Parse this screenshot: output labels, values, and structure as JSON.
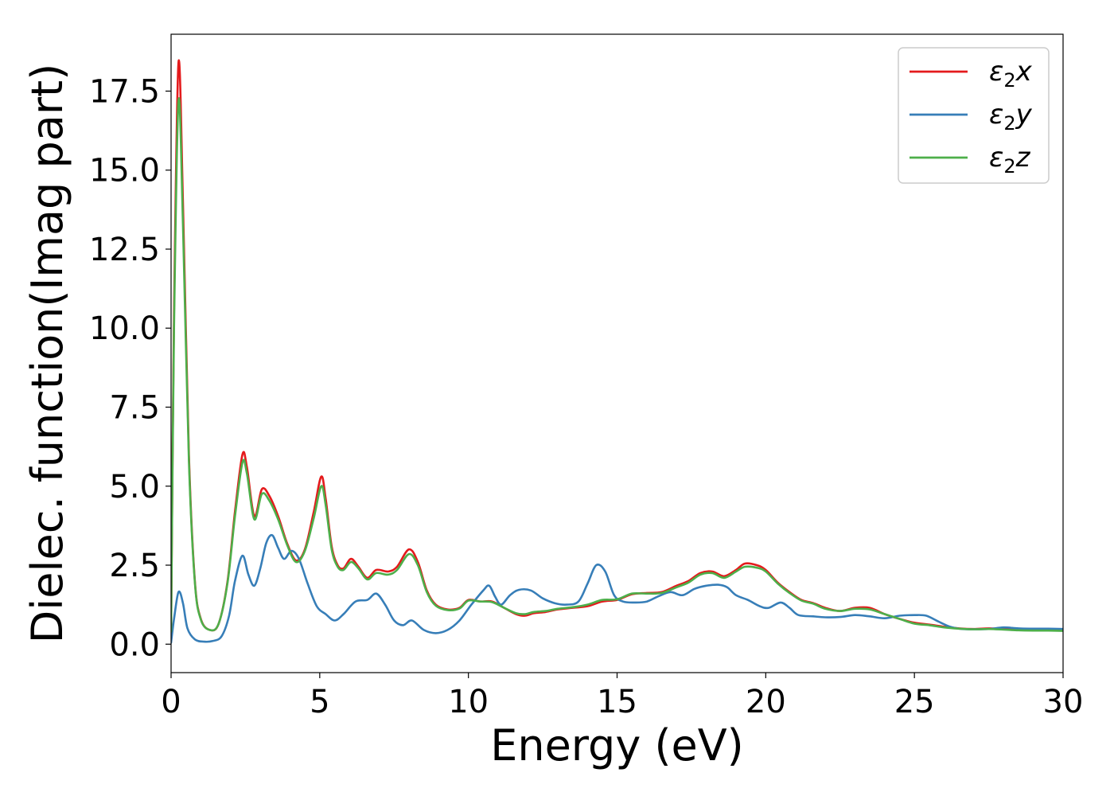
{
  "chart_data": {
    "type": "line",
    "xlabel": "Energy (eV)",
    "ylabel": "Dielec. function(Imag part)",
    "xlim": [
      0,
      30
    ],
    "ylim": [
      -0.9,
      19.3
    ],
    "xticks": [
      0,
      5,
      10,
      15,
      20,
      25,
      30
    ],
    "xtick_labels": [
      "0",
      "5",
      "10",
      "15",
      "20",
      "25",
      "30"
    ],
    "yticks": [
      0.0,
      2.5,
      5.0,
      7.5,
      10.0,
      12.5,
      15.0,
      17.5
    ],
    "ytick_labels": [
      "0.0",
      "2.5",
      "5.0",
      "7.5",
      "10.0",
      "12.5",
      "15.0",
      "17.5"
    ],
    "grid": false,
    "legend_position": "top-right",
    "series": [
      {
        "name": "ε₂x",
        "legend_base": "ε",
        "legend_sub": "2",
        "legend_suffix": "x",
        "color": "#e41a1c",
        "points": [
          [
            0,
            0.4
          ],
          [
            0.1,
            10.5
          ],
          [
            0.25,
            18.4
          ],
          [
            0.4,
            14.0
          ],
          [
            0.6,
            6.0
          ],
          [
            0.8,
            2.0
          ],
          [
            1.0,
            0.8
          ],
          [
            1.3,
            0.45
          ],
          [
            1.6,
            0.65
          ],
          [
            1.9,
            2.0
          ],
          [
            2.15,
            4.2
          ],
          [
            2.4,
            6.0
          ],
          [
            2.55,
            5.6
          ],
          [
            2.8,
            4.05
          ],
          [
            3.05,
            4.9
          ],
          [
            3.3,
            4.7
          ],
          [
            3.6,
            4.05
          ],
          [
            3.9,
            3.2
          ],
          [
            4.2,
            2.65
          ],
          [
            4.5,
            3.0
          ],
          [
            4.8,
            4.2
          ],
          [
            5.05,
            5.3
          ],
          [
            5.2,
            4.6
          ],
          [
            5.4,
            3.1
          ],
          [
            5.6,
            2.5
          ],
          [
            5.8,
            2.4
          ],
          [
            6.05,
            2.7
          ],
          [
            6.3,
            2.45
          ],
          [
            6.6,
            2.1
          ],
          [
            6.9,
            2.35
          ],
          [
            7.3,
            2.3
          ],
          [
            7.6,
            2.45
          ],
          [
            8.0,
            3.0
          ],
          [
            8.3,
            2.6
          ],
          [
            8.6,
            1.7
          ],
          [
            8.9,
            1.25
          ],
          [
            9.3,
            1.1
          ],
          [
            9.7,
            1.15
          ],
          [
            10.0,
            1.4
          ],
          [
            10.4,
            1.35
          ],
          [
            10.8,
            1.35
          ],
          [
            11.2,
            1.15
          ],
          [
            11.6,
            0.95
          ],
          [
            11.9,
            0.9
          ],
          [
            12.2,
            0.98
          ],
          [
            12.6,
            1.02
          ],
          [
            13.0,
            1.1
          ],
          [
            13.5,
            1.15
          ],
          [
            14.0,
            1.2
          ],
          [
            14.5,
            1.35
          ],
          [
            15.0,
            1.4
          ],
          [
            15.5,
            1.58
          ],
          [
            16.0,
            1.62
          ],
          [
            16.5,
            1.65
          ],
          [
            17.0,
            1.85
          ],
          [
            17.4,
            2.0
          ],
          [
            17.8,
            2.25
          ],
          [
            18.2,
            2.3
          ],
          [
            18.6,
            2.15
          ],
          [
            19.0,
            2.35
          ],
          [
            19.3,
            2.55
          ],
          [
            19.7,
            2.5
          ],
          [
            20.0,
            2.35
          ],
          [
            20.4,
            1.95
          ],
          [
            20.8,
            1.65
          ],
          [
            21.2,
            1.4
          ],
          [
            21.6,
            1.3
          ],
          [
            22.0,
            1.15
          ],
          [
            22.5,
            1.05
          ],
          [
            23.0,
            1.15
          ],
          [
            23.5,
            1.15
          ],
          [
            24.0,
            0.95
          ],
          [
            24.5,
            0.8
          ],
          [
            25.0,
            0.68
          ],
          [
            25.5,
            0.62
          ],
          [
            26.0,
            0.55
          ],
          [
            26.5,
            0.5
          ],
          [
            27.0,
            0.48
          ],
          [
            27.5,
            0.5
          ],
          [
            28.0,
            0.48
          ],
          [
            28.5,
            0.45
          ],
          [
            29.0,
            0.45
          ],
          [
            29.5,
            0.45
          ],
          [
            30.0,
            0.44
          ]
        ]
      },
      {
        "name": "ε₂y",
        "legend_base": "ε",
        "legend_sub": "2",
        "legend_suffix": "y",
        "color": "#377eb8",
        "points": [
          [
            0,
            0.05
          ],
          [
            0.1,
            0.8
          ],
          [
            0.25,
            1.65
          ],
          [
            0.4,
            1.3
          ],
          [
            0.55,
            0.5
          ],
          [
            0.8,
            0.15
          ],
          [
            1.1,
            0.08
          ],
          [
            1.4,
            0.1
          ],
          [
            1.7,
            0.25
          ],
          [
            1.95,
            0.9
          ],
          [
            2.15,
            2.0
          ],
          [
            2.4,
            2.8
          ],
          [
            2.6,
            2.2
          ],
          [
            2.8,
            1.85
          ],
          [
            3.0,
            2.4
          ],
          [
            3.2,
            3.2
          ],
          [
            3.4,
            3.45
          ],
          [
            3.6,
            3.05
          ],
          [
            3.8,
            2.7
          ],
          [
            4.05,
            2.95
          ],
          [
            4.3,
            2.7
          ],
          [
            4.6,
            1.9
          ],
          [
            4.9,
            1.2
          ],
          [
            5.2,
            0.95
          ],
          [
            5.5,
            0.75
          ],
          [
            5.8,
            0.95
          ],
          [
            6.2,
            1.35
          ],
          [
            6.6,
            1.4
          ],
          [
            6.9,
            1.6
          ],
          [
            7.2,
            1.25
          ],
          [
            7.5,
            0.75
          ],
          [
            7.8,
            0.6
          ],
          [
            8.1,
            0.75
          ],
          [
            8.5,
            0.45
          ],
          [
            8.9,
            0.35
          ],
          [
            9.3,
            0.45
          ],
          [
            9.7,
            0.75
          ],
          [
            10.1,
            1.25
          ],
          [
            10.5,
            1.7
          ],
          [
            10.7,
            1.85
          ],
          [
            10.9,
            1.5
          ],
          [
            11.1,
            1.25
          ],
          [
            11.4,
            1.55
          ],
          [
            11.7,
            1.72
          ],
          [
            12.1,
            1.7
          ],
          [
            12.5,
            1.45
          ],
          [
            12.9,
            1.3
          ],
          [
            13.3,
            1.25
          ],
          [
            13.7,
            1.35
          ],
          [
            14.0,
            1.9
          ],
          [
            14.3,
            2.5
          ],
          [
            14.6,
            2.3
          ],
          [
            14.9,
            1.55
          ],
          [
            15.2,
            1.35
          ],
          [
            15.6,
            1.32
          ],
          [
            16.0,
            1.35
          ],
          [
            16.4,
            1.52
          ],
          [
            16.8,
            1.65
          ],
          [
            17.2,
            1.55
          ],
          [
            17.6,
            1.75
          ],
          [
            18.0,
            1.85
          ],
          [
            18.4,
            1.88
          ],
          [
            18.7,
            1.8
          ],
          [
            19.0,
            1.55
          ],
          [
            19.4,
            1.4
          ],
          [
            19.8,
            1.2
          ],
          [
            20.1,
            1.15
          ],
          [
            20.5,
            1.32
          ],
          [
            20.8,
            1.15
          ],
          [
            21.1,
            0.92
          ],
          [
            21.6,
            0.88
          ],
          [
            22.0,
            0.85
          ],
          [
            22.5,
            0.86
          ],
          [
            23.0,
            0.92
          ],
          [
            23.5,
            0.88
          ],
          [
            24.0,
            0.82
          ],
          [
            24.5,
            0.9
          ],
          [
            25.0,
            0.92
          ],
          [
            25.4,
            0.9
          ],
          [
            25.8,
            0.72
          ],
          [
            26.2,
            0.55
          ],
          [
            26.6,
            0.48
          ],
          [
            27.0,
            0.47
          ],
          [
            27.5,
            0.48
          ],
          [
            28.0,
            0.53
          ],
          [
            28.5,
            0.5
          ],
          [
            29.0,
            0.49
          ],
          [
            29.5,
            0.49
          ],
          [
            30.0,
            0.48
          ]
        ]
      },
      {
        "name": "ε₂z",
        "legend_base": "ε",
        "legend_sub": "2",
        "legend_suffix": "z",
        "color": "#4daf4a",
        "points": [
          [
            0,
            0.4
          ],
          [
            0.1,
            10.0
          ],
          [
            0.25,
            17.2
          ],
          [
            0.4,
            13.3
          ],
          [
            0.6,
            5.8
          ],
          [
            0.8,
            1.95
          ],
          [
            1.0,
            0.78
          ],
          [
            1.3,
            0.45
          ],
          [
            1.6,
            0.65
          ],
          [
            1.9,
            1.95
          ],
          [
            2.15,
            4.05
          ],
          [
            2.4,
            5.75
          ],
          [
            2.55,
            5.4
          ],
          [
            2.8,
            3.95
          ],
          [
            3.05,
            4.75
          ],
          [
            3.3,
            4.55
          ],
          [
            3.6,
            3.95
          ],
          [
            3.9,
            3.15
          ],
          [
            4.2,
            2.6
          ],
          [
            4.5,
            2.95
          ],
          [
            4.8,
            4.0
          ],
          [
            5.05,
            5.0
          ],
          [
            5.2,
            4.4
          ],
          [
            5.4,
            3.0
          ],
          [
            5.6,
            2.45
          ],
          [
            5.8,
            2.35
          ],
          [
            6.05,
            2.6
          ],
          [
            6.3,
            2.4
          ],
          [
            6.6,
            2.05
          ],
          [
            6.9,
            2.25
          ],
          [
            7.3,
            2.2
          ],
          [
            7.6,
            2.35
          ],
          [
            8.0,
            2.85
          ],
          [
            8.3,
            2.5
          ],
          [
            8.6,
            1.65
          ],
          [
            8.9,
            1.22
          ],
          [
            9.3,
            1.08
          ],
          [
            9.7,
            1.13
          ],
          [
            10.0,
            1.38
          ],
          [
            10.4,
            1.35
          ],
          [
            10.8,
            1.33
          ],
          [
            11.2,
            1.15
          ],
          [
            11.6,
            0.98
          ],
          [
            11.9,
            0.95
          ],
          [
            12.2,
            1.02
          ],
          [
            12.6,
            1.05
          ],
          [
            13.0,
            1.12
          ],
          [
            13.5,
            1.17
          ],
          [
            14.0,
            1.25
          ],
          [
            14.5,
            1.4
          ],
          [
            15.0,
            1.42
          ],
          [
            15.5,
            1.6
          ],
          [
            16.0,
            1.6
          ],
          [
            16.5,
            1.62
          ],
          [
            17.0,
            1.8
          ],
          [
            17.4,
            1.95
          ],
          [
            17.8,
            2.2
          ],
          [
            18.2,
            2.25
          ],
          [
            18.6,
            2.1
          ],
          [
            19.0,
            2.3
          ],
          [
            19.3,
            2.45
          ],
          [
            19.7,
            2.42
          ],
          [
            20.0,
            2.3
          ],
          [
            20.4,
            1.92
          ],
          [
            20.8,
            1.62
          ],
          [
            21.2,
            1.38
          ],
          [
            21.6,
            1.28
          ],
          [
            22.0,
            1.12
          ],
          [
            22.5,
            1.05
          ],
          [
            23.0,
            1.12
          ],
          [
            23.5,
            1.1
          ],
          [
            24.0,
            0.95
          ],
          [
            24.5,
            0.8
          ],
          [
            25.0,
            0.65
          ],
          [
            25.5,
            0.6
          ],
          [
            26.0,
            0.53
          ],
          [
            26.5,
            0.49
          ],
          [
            27.0,
            0.47
          ],
          [
            27.5,
            0.48
          ],
          [
            28.0,
            0.46
          ],
          [
            28.5,
            0.44
          ],
          [
            29.0,
            0.43
          ],
          [
            29.5,
            0.43
          ],
          [
            30.0,
            0.42
          ]
        ]
      }
    ]
  }
}
